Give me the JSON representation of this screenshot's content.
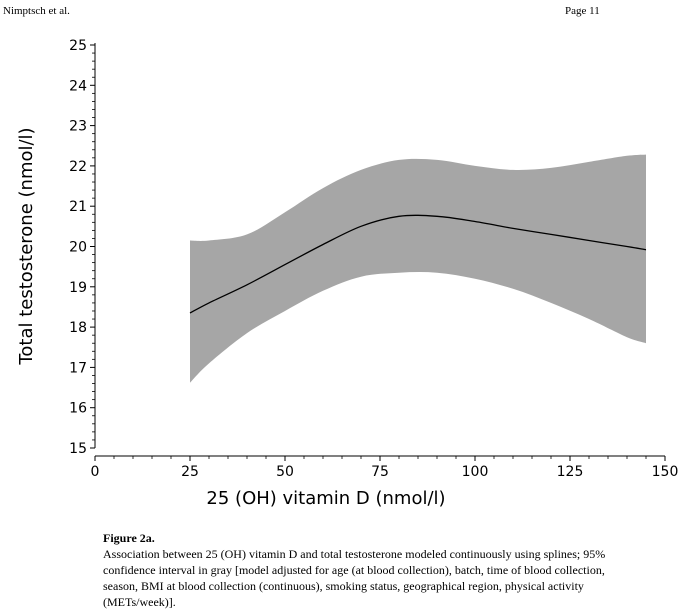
{
  "header": {
    "left": "Nimptsch et al.",
    "right": "Page 11"
  },
  "chart_data": {
    "type": "line",
    "title": "",
    "xlabel": "25 (OH) vitamin D (nmol/l)",
    "ylabel": "Total testosterone (nmol/l)",
    "xlim": [
      0,
      150
    ],
    "ylim": [
      15,
      25
    ],
    "xticks": [
      0,
      25,
      50,
      75,
      100,
      125,
      150
    ],
    "yticks": [
      15,
      16,
      17,
      18,
      19,
      20,
      21,
      22,
      23,
      24,
      25
    ],
    "xtick_labels": [
      "0",
      "25",
      "50",
      "75",
      "100",
      "125",
      "150"
    ],
    "ytick_labels": [
      "15",
      "16",
      "17",
      "18",
      "19",
      "20",
      "21",
      "22",
      "23",
      "24",
      "25"
    ],
    "grid": false,
    "band_color": "#a6a6a6",
    "line_color": "#000000",
    "series": [
      {
        "name": "spline estimate",
        "x": [
          25,
          30,
          40,
          50,
          60,
          70,
          80,
          90,
          100,
          110,
          120,
          130,
          140,
          145
        ],
        "y": [
          18.35,
          18.6,
          19.05,
          19.55,
          20.05,
          20.5,
          20.75,
          20.75,
          20.62,
          20.45,
          20.3,
          20.15,
          20.0,
          19.92
        ]
      },
      {
        "name": "95% CI upper",
        "x": [
          25,
          30,
          40,
          50,
          60,
          70,
          80,
          90,
          100,
          110,
          120,
          130,
          140,
          145
        ],
        "y": [
          20.15,
          20.15,
          20.3,
          20.85,
          21.45,
          21.9,
          22.15,
          22.15,
          22.0,
          21.9,
          21.95,
          22.1,
          22.25,
          22.28
        ]
      },
      {
        "name": "95% CI lower",
        "x": [
          25,
          30,
          40,
          50,
          60,
          70,
          80,
          90,
          100,
          110,
          120,
          130,
          140,
          145
        ],
        "y": [
          16.62,
          17.1,
          17.85,
          18.4,
          18.9,
          19.25,
          19.35,
          19.35,
          19.2,
          18.95,
          18.6,
          18.2,
          17.75,
          17.6
        ]
      }
    ]
  },
  "caption": {
    "label": "Figure 2a.",
    "text": "Association between 25 (OH) vitamin D and total testosterone modeled continuously using splines; 95% confidence interval in gray [model adjusted for age (at blood collection), batch, time of blood collection, season, BMI at blood collection (continuous), smoking status, geographical region, physical activity (METs/week)]."
  }
}
